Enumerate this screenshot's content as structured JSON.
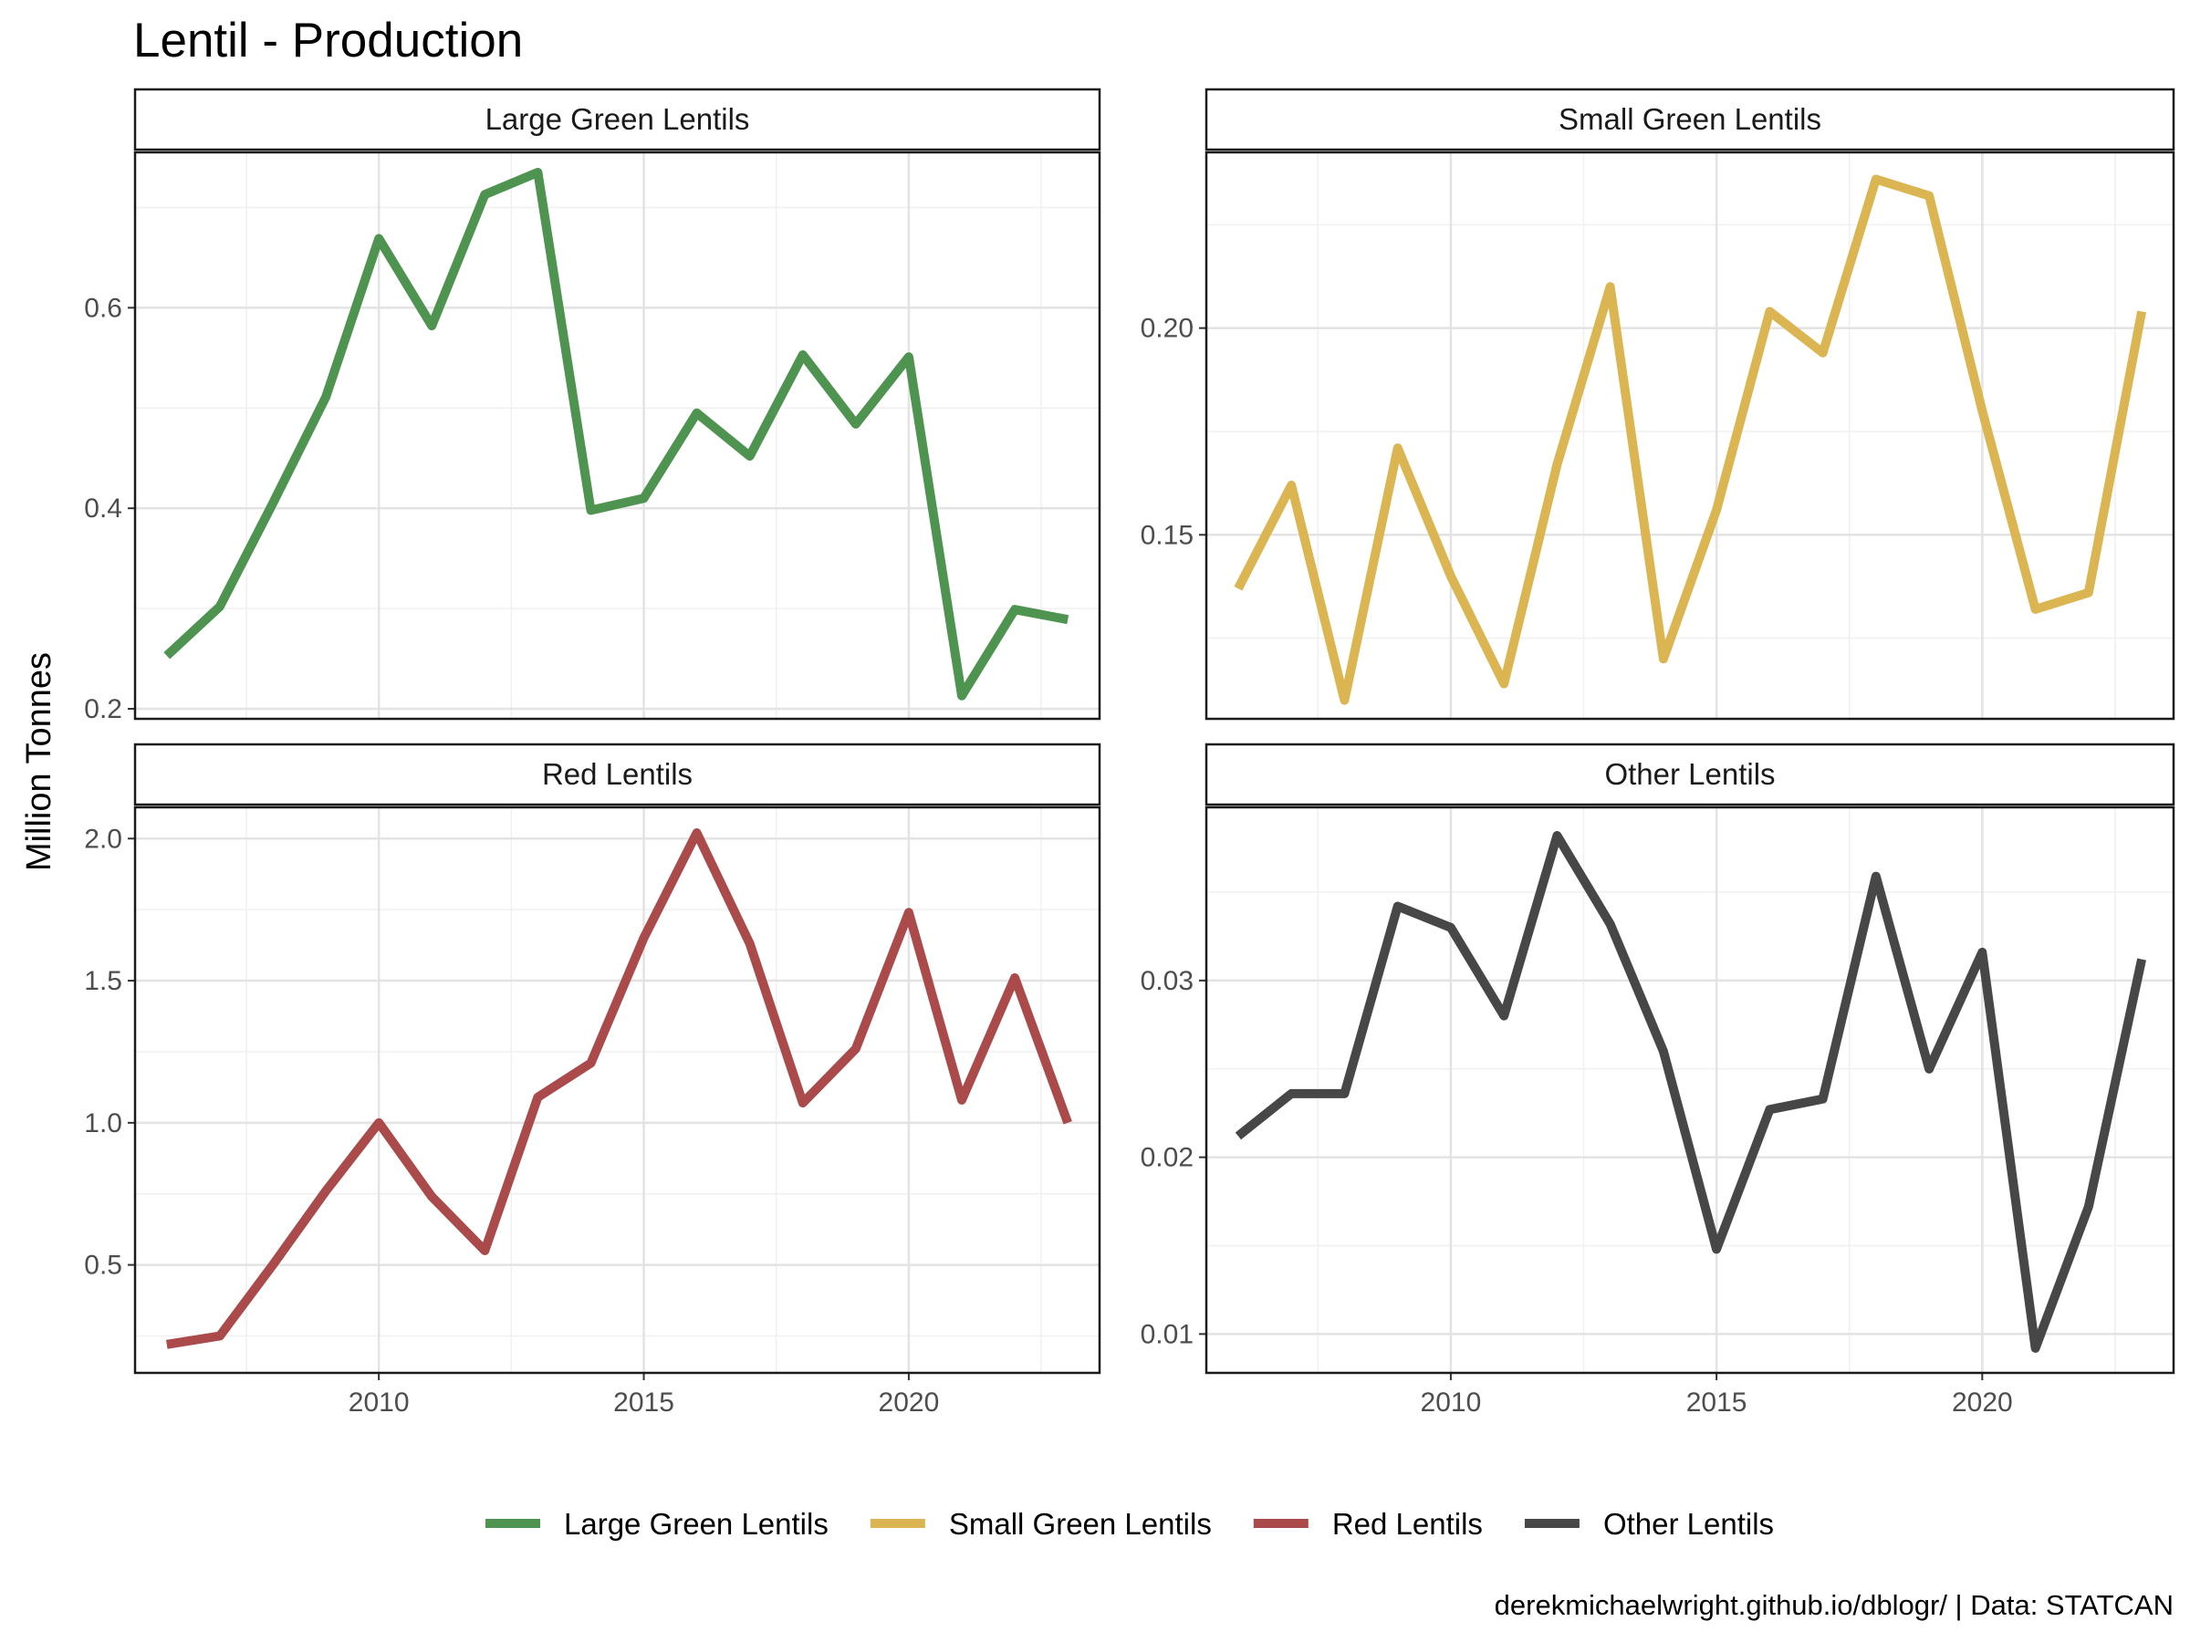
{
  "title": "Lentil - Production",
  "ylabel": "Million Tonnes",
  "caption": "derekmichaelwright.github.io/dblogr/ | Data: STATCAN",
  "chart_data": {
    "type": "line",
    "x": [
      2006,
      2007,
      2008,
      2009,
      2010,
      2011,
      2012,
      2013,
      2014,
      2015,
      2016,
      2017,
      2018,
      2019,
      2020,
      2021,
      2022,
      2023
    ],
    "xlim": [
      2005.4,
      2023.6
    ],
    "x_ticks": [
      2010,
      2015,
      2020
    ],
    "x_tick_labels": [
      "2010",
      "2015",
      "2020"
    ],
    "grid": true,
    "legend_position": "bottom",
    "panels": [
      {
        "name": "Large Green Lentils",
        "color": "#4e934f",
        "ylim": [
          0.19,
          0.755
        ],
        "y_ticks": [
          0.2,
          0.4,
          0.6
        ],
        "y_tick_labels": [
          "0.2",
          "0.4",
          "0.6"
        ],
        "values": [
          0.253,
          0.302,
          0.405,
          0.511,
          0.669,
          0.582,
          0.713,
          0.735,
          0.398,
          0.41,
          0.495,
          0.452,
          0.553,
          0.484,
          0.551,
          0.213,
          0.299,
          0.289
        ]
      },
      {
        "name": "Small Green Lentils",
        "color": "#dcb553",
        "ylim": [
          0.1055,
          0.2425
        ],
        "y_ticks": [
          0.15,
          0.2
        ],
        "y_tick_labels": [
          "0.15",
          "0.20"
        ],
        "values": [
          0.137,
          0.162,
          0.11,
          0.171,
          0.14,
          0.114,
          0.167,
          0.21,
          0.12,
          0.156,
          0.204,
          0.194,
          0.236,
          0.232,
          0.18,
          0.132,
          0.136,
          0.204
        ]
      },
      {
        "name": "Red Lentils",
        "color": "#aa4a4b",
        "ylim": [
          0.12,
          2.11
        ],
        "y_ticks": [
          0.5,
          1.0,
          1.5,
          2.0
        ],
        "y_tick_labels": [
          "0.5",
          "1.0",
          "1.5",
          "2.0"
        ],
        "values": [
          0.22,
          0.25,
          0.5,
          0.76,
          1.0,
          0.74,
          0.55,
          1.09,
          1.21,
          1.65,
          2.02,
          1.63,
          1.07,
          1.26,
          1.74,
          1.08,
          1.51,
          1.0
        ]
      },
      {
        "name": "Other Lentils",
        "color": "#474747",
        "ylim": [
          0.0078,
          0.0398
        ],
        "y_ticks": [
          0.01,
          0.02,
          0.03
        ],
        "y_tick_labels": [
          "0.01",
          "0.02",
          "0.03"
        ],
        "values": [
          0.0212,
          0.0236,
          0.0236,
          0.0342,
          0.033,
          0.028,
          0.0382,
          0.0332,
          0.026,
          0.0148,
          0.0227,
          0.0233,
          0.0359,
          0.025,
          0.0316,
          0.0092,
          0.0172,
          0.0312
        ]
      }
    ]
  }
}
